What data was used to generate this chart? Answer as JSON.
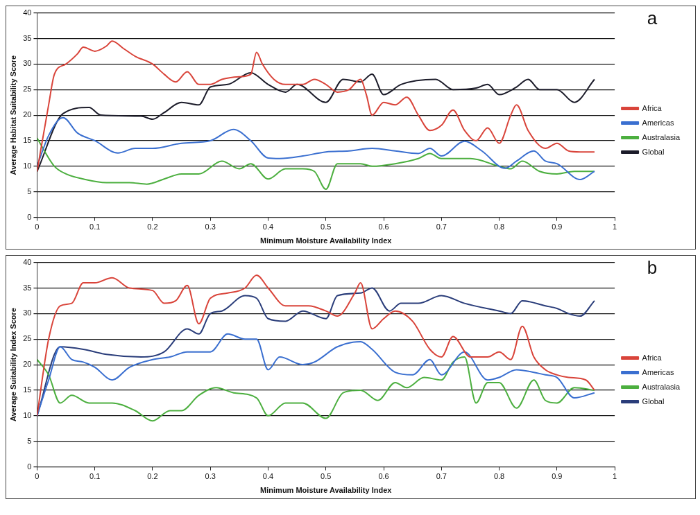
{
  "chart_data": [
    {
      "type": "line",
      "xlabel": "Minimum Moisture Availability Index",
      "ylabel": "Average Habitat Suitability Score",
      "annotations": [
        "a"
      ],
      "xlim": [
        0,
        1
      ],
      "xticks": [
        0,
        0.1,
        0.2,
        0.3,
        0.4,
        0.5,
        0.6,
        0.7,
        0.8,
        0.9,
        1
      ],
      "ylim": [
        0,
        40
      ],
      "yticks": [
        0,
        5,
        10,
        15,
        20,
        25,
        30,
        35,
        40
      ],
      "grid": "y",
      "legend": "right",
      "marker": "none",
      "line_style": "solid",
      "series": [
        {
          "name": "Africa",
          "color": "#d9443a",
          "x": [
            0,
            0.02,
            0.03,
            0.05,
            0.07,
            0.08,
            0.1,
            0.12,
            0.13,
            0.15,
            0.17,
            0.2,
            0.22,
            0.24,
            0.26,
            0.28,
            0.3,
            0.32,
            0.35,
            0.37,
            0.38,
            0.39,
            0.41,
            0.43,
            0.46,
            0.48,
            0.5,
            0.52,
            0.54,
            0.56,
            0.57,
            0.58,
            0.6,
            0.62,
            0.64,
            0.66,
            0.68,
            0.7,
            0.72,
            0.74,
            0.76,
            0.78,
            0.8,
            0.82,
            0.83,
            0.85,
            0.88,
            0.9,
            0.92,
            0.94,
            0.965
          ],
          "values": [
            9,
            22,
            28,
            30,
            32,
            33.3,
            32.5,
            33.5,
            34.5,
            33,
            31.5,
            30,
            28,
            26.5,
            28.5,
            26,
            26,
            27,
            27.5,
            28,
            32.3,
            30,
            27,
            26,
            26,
            27,
            26,
            24.5,
            25,
            27,
            24,
            20,
            22.5,
            22,
            23.5,
            20,
            17,
            18,
            21,
            17,
            15,
            17.5,
            14.5,
            20,
            22,
            17,
            13.5,
            14.5,
            13,
            12.8,
            12.8
          ]
        },
        {
          "name": "Americas",
          "color": "#3a6fd0",
          "x": [
            0,
            0.02,
            0.045,
            0.07,
            0.1,
            0.14,
            0.17,
            0.2,
            0.25,
            0.3,
            0.34,
            0.37,
            0.4,
            0.42,
            0.46,
            0.5,
            0.54,
            0.58,
            0.62,
            0.66,
            0.68,
            0.7,
            0.74,
            0.77,
            0.81,
            0.83,
            0.86,
            0.88,
            0.9,
            0.94,
            0.965
          ],
          "values": [
            10,
            16,
            19.5,
            16.5,
            15,
            12.6,
            13.5,
            13.5,
            14.5,
            15,
            17.2,
            15,
            11.6,
            11.5,
            12,
            12.8,
            13,
            13.5,
            13,
            12.5,
            13.5,
            12,
            14.9,
            13,
            9.6,
            11,
            13,
            11,
            10.5,
            7.4,
            9
          ]
        },
        {
          "name": "Australasia",
          "color": "#4caf3f",
          "x": [
            0,
            0.03,
            0.05,
            0.08,
            0.12,
            0.16,
            0.19,
            0.22,
            0.25,
            0.28,
            0.32,
            0.35,
            0.37,
            0.4,
            0.43,
            0.46,
            0.48,
            0.5,
            0.52,
            0.56,
            0.58,
            0.62,
            0.66,
            0.68,
            0.7,
            0.75,
            0.8,
            0.82,
            0.84,
            0.87,
            0.9,
            0.93,
            0.965
          ],
          "values": [
            15.5,
            10,
            8.5,
            7.5,
            6.8,
            6.8,
            6.5,
            7.5,
            8.5,
            8.5,
            11,
            9.5,
            10.5,
            7.5,
            9.5,
            9.5,
            9,
            5.5,
            10.5,
            10.5,
            10,
            10.5,
            11.5,
            12.5,
            11.5,
            11.5,
            10,
            9.5,
            11,
            9,
            8.5,
            9,
            9
          ]
        },
        {
          "name": "Global",
          "color": "#1c1c2a",
          "x": [
            0,
            0.045,
            0.09,
            0.11,
            0.18,
            0.2,
            0.22,
            0.25,
            0.28,
            0.3,
            0.33,
            0.37,
            0.4,
            0.43,
            0.45,
            0.5,
            0.53,
            0.56,
            0.58,
            0.6,
            0.63,
            0.69,
            0.72,
            0.76,
            0.78,
            0.8,
            0.83,
            0.85,
            0.87,
            0.9,
            0.93,
            0.965
          ],
          "values": [
            9,
            20.3,
            21.5,
            20,
            19.8,
            19.2,
            20.5,
            22.5,
            22,
            25.5,
            26,
            28.3,
            26,
            24.5,
            26,
            22.5,
            27,
            26.5,
            28,
            24,
            26,
            27,
            25,
            25.3,
            26,
            24,
            25.5,
            27,
            25,
            25,
            22.5,
            27
          ]
        }
      ]
    },
    {
      "type": "line",
      "xlabel": "Minimum Moisture Availability Index",
      "ylabel": "Average Suitability Index Score",
      "annotations": [
        "b"
      ],
      "xlim": [
        0,
        1
      ],
      "xticks": [
        0,
        0.1,
        0.2,
        0.3,
        0.4,
        0.5,
        0.6,
        0.7,
        0.8,
        0.9,
        1
      ],
      "ylim": [
        0,
        40
      ],
      "yticks": [
        0,
        5,
        10,
        15,
        20,
        25,
        30,
        35,
        40
      ],
      "grid": "y",
      "legend": "right",
      "marker": "none",
      "line_style": "solid",
      "series": [
        {
          "name": "Africa",
          "color": "#d9443a",
          "x": [
            0,
            0.02,
            0.04,
            0.06,
            0.08,
            0.1,
            0.13,
            0.16,
            0.2,
            0.22,
            0.24,
            0.26,
            0.28,
            0.3,
            0.33,
            0.36,
            0.38,
            0.4,
            0.43,
            0.47,
            0.5,
            0.52,
            0.55,
            0.56,
            0.58,
            0.6,
            0.62,
            0.65,
            0.68,
            0.7,
            0.72,
            0.75,
            0.78,
            0.8,
            0.82,
            0.84,
            0.86,
            0.88,
            0.9,
            0.92,
            0.95,
            0.965
          ],
          "values": [
            10,
            25,
            31.5,
            32,
            36,
            36,
            37,
            35,
            34.5,
            32,
            32.5,
            35.5,
            28,
            33,
            34,
            35,
            37.5,
            35,
            31.5,
            31.5,
            30.5,
            29.5,
            34,
            36,
            27,
            29,
            30.5,
            28.5,
            23,
            21.5,
            25.5,
            21.5,
            21.5,
            22.5,
            21,
            27.5,
            21.5,
            19,
            18,
            17.5,
            17,
            15
          ]
        },
        {
          "name": "Americas",
          "color": "#3a6fd0",
          "x": [
            0,
            0.02,
            0.04,
            0.06,
            0.08,
            0.1,
            0.13,
            0.16,
            0.2,
            0.23,
            0.26,
            0.3,
            0.33,
            0.36,
            0.38,
            0.4,
            0.42,
            0.46,
            0.48,
            0.52,
            0.56,
            0.58,
            0.62,
            0.65,
            0.68,
            0.7,
            0.74,
            0.78,
            0.8,
            0.83,
            0.86,
            0.88,
            0.9,
            0.93,
            0.965
          ],
          "values": [
            10,
            17,
            23.5,
            21,
            20.5,
            19.5,
            17,
            19.5,
            21,
            21.5,
            22.5,
            22.5,
            26,
            25,
            25,
            19,
            21.5,
            20,
            20.5,
            23.5,
            24.5,
            23,
            18.5,
            18,
            21,
            18,
            22.5,
            17,
            17.5,
            19,
            18.5,
            18,
            17.5,
            13.5,
            14.5
          ]
        },
        {
          "name": "Australasia",
          "color": "#4caf3f",
          "x": [
            0,
            0.02,
            0.04,
            0.06,
            0.09,
            0.13,
            0.17,
            0.2,
            0.23,
            0.25,
            0.28,
            0.31,
            0.34,
            0.38,
            0.4,
            0.43,
            0.46,
            0.5,
            0.53,
            0.56,
            0.59,
            0.62,
            0.64,
            0.67,
            0.7,
            0.72,
            0.74,
            0.76,
            0.78,
            0.8,
            0.83,
            0.86,
            0.88,
            0.9,
            0.93,
            0.965
          ],
          "values": [
            21,
            18,
            12.5,
            14,
            12.5,
            12.5,
            11,
            9,
            11,
            11,
            14,
            15.5,
            14.5,
            13.5,
            10,
            12.5,
            12.5,
            9.5,
            14.5,
            15,
            13,
            16.5,
            15.5,
            17.5,
            17,
            20.5,
            21.5,
            12.5,
            16.5,
            16.5,
            11.5,
            17,
            13,
            12.5,
            15.5,
            15
          ]
        },
        {
          "name": "Global",
          "color": "#2a3d7a",
          "x": [
            0,
            0.04,
            0.08,
            0.12,
            0.18,
            0.22,
            0.26,
            0.28,
            0.3,
            0.32,
            0.36,
            0.38,
            0.4,
            0.43,
            0.46,
            0.5,
            0.52,
            0.56,
            0.58,
            0.61,
            0.63,
            0.66,
            0.7,
            0.74,
            0.8,
            0.82,
            0.84,
            0.88,
            0.9,
            0.92,
            0.94,
            0.965
          ],
          "values": [
            10,
            23.5,
            23,
            22,
            21.5,
            22.5,
            27,
            26,
            30,
            30.5,
            33.5,
            33,
            29,
            28.5,
            30.5,
            29,
            33.5,
            34,
            35,
            30.5,
            32,
            32,
            33.5,
            32,
            30.5,
            30,
            32.5,
            31.5,
            31,
            30,
            29.5,
            32.5
          ]
        }
      ]
    }
  ]
}
